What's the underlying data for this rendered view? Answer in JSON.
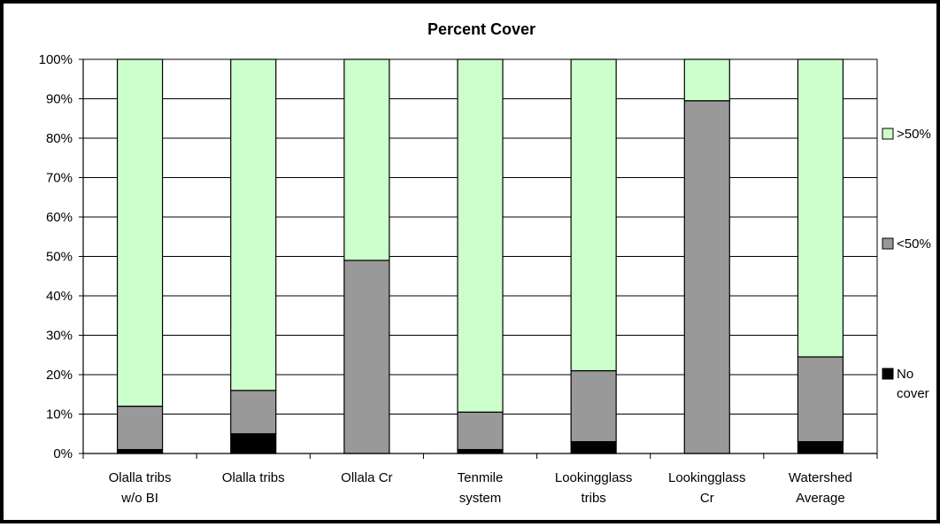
{
  "chart_data": {
    "type": "bar",
    "stacked": true,
    "normalized": true,
    "title": "Percent Cover",
    "xlabel": "",
    "ylabel": "",
    "ylim": [
      0,
      100
    ],
    "yticks": [
      "0%",
      "10%",
      "20%",
      "30%",
      "40%",
      "50%",
      "60%",
      "70%",
      "80%",
      "90%",
      "100%"
    ],
    "grid": true,
    "legend_position": "right",
    "categories": [
      [
        "Olalla tribs",
        "w/o BI"
      ],
      [
        "Olalla tribs"
      ],
      [
        "Ollala Cr"
      ],
      [
        "Tenmile",
        "system"
      ],
      [
        "Lookingglass",
        "tribs"
      ],
      [
        "Lookingglass",
        "Cr"
      ],
      [
        "Watershed",
        "Average"
      ]
    ],
    "series": [
      {
        "name": [
          "No",
          "cover"
        ],
        "color": "#000000",
        "values": [
          1,
          5,
          0,
          1,
          3,
          0,
          3
        ]
      },
      {
        "name": [
          "<50%"
        ],
        "color": "#999999",
        "values": [
          11,
          11,
          49,
          9.5,
          18,
          89.5,
          21.5
        ]
      },
      {
        "name": [
          ">50%"
        ],
        "color": "#ccffcc",
        "values": [
          88,
          84,
          51,
          89.5,
          79,
          10.5,
          75.5
        ]
      }
    ]
  }
}
